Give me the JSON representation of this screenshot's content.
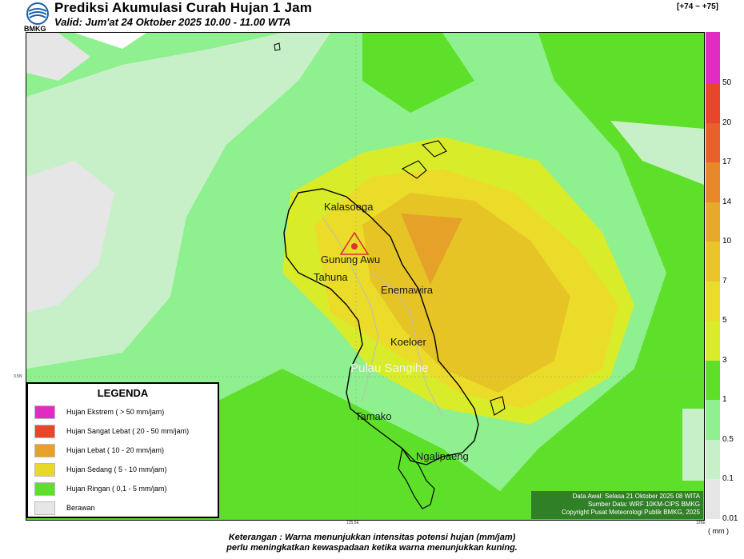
{
  "header": {
    "title": "Prediksi Akumulasi Curah Hujan 1 Jam",
    "valid": "Valid: Jum'at 24 Oktober 2025 10.00 - 11.00 WTA",
    "logo_text": "BMKG",
    "range_label": "[+74 ~ +75]"
  },
  "places": {
    "kalasoega": "Kalasoega",
    "gunung_awu": "Gunung Awu",
    "tahuna": "Tahuna",
    "enemawira": "Enemawira",
    "koeloer": "Koeloer",
    "pulau_sangihe": "Pulau Sangihe",
    "tamako": "Tamako",
    "ngalipaeng": "Ngalipaeng"
  },
  "ticks": {
    "lat": "3.5N",
    "lon1": "125.5E",
    "lon2": "126E"
  },
  "legend": {
    "title": "LEGENDA",
    "items": [
      {
        "label": "Hujan Ekstrem ( > 50 mm/jam)",
        "color": "#e02cc0"
      },
      {
        "label": "Hujan Sangat Lebat ( 20 - 50 mm/jam)",
        "color": "#e8452a"
      },
      {
        "label": "Hujan Lebat ( 10 - 20 mm/jam)",
        "color": "#e8a02a"
      },
      {
        "label": "Hujan Sedang ( 5 - 10 mm/jam)",
        "color": "#e8d82a"
      },
      {
        "label": "Hujan Ringan ( 0,1 - 5 mm/jam)",
        "color": "#5ee02a"
      },
      {
        "label": "Berawan",
        "color": "#e6e6e6"
      }
    ]
  },
  "info": {
    "line1": "Data Awal: Selasa 21 Oktober 2025 08 WITA",
    "line2": "Sumber Data: WRF 10KM-CIPS BMKG",
    "line3": "Copyright Pusat Meteorologi Publik BMKG, 2025"
  },
  "colorbar": {
    "labels": [
      "50",
      "20",
      "17",
      "14",
      "10",
      "7",
      "5",
      "3",
      "1",
      "0.5",
      "0.1",
      "0.01"
    ],
    "colors": [
      "#e02cc0",
      "#e8452a",
      "#e8602a",
      "#e8882a",
      "#e8a82a",
      "#ebc42a",
      "#ebdc2a",
      "#d9ec2a",
      "#5ee02a",
      "#8ef08e",
      "#c8f0c8",
      "#e6e6e6"
    ],
    "unit": "( mm )"
  },
  "footer": {
    "line1": "Keterangan : Warna menunjukkan intensitas potensi hujan (mm/jam)",
    "line2": "perlu meningkatkan kewaspadaan ketika warna menunjukkan kuning."
  }
}
